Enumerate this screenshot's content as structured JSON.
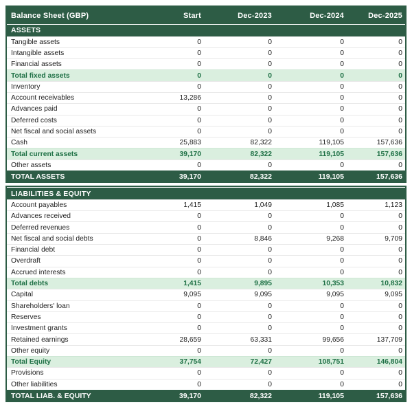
{
  "sheet": {
    "title": "Balance Sheet (GBP)",
    "columns": [
      "Start",
      "Dec-2023",
      "Dec-2024",
      "Dec-2025"
    ],
    "colors": {
      "header_green": "#2d5c45",
      "subtotal_bg": "#daefdf",
      "subtotal_text": "#1e7045"
    },
    "sections": [
      {
        "name": "ASSETS",
        "rows": [
          {
            "label": "Tangible assets",
            "type": "normal",
            "values": [
              "0",
              "0",
              "0",
              "0"
            ]
          },
          {
            "label": "Intangible assets",
            "type": "normal",
            "values": [
              "0",
              "0",
              "0",
              "0"
            ]
          },
          {
            "label": "Financial assets",
            "type": "normal",
            "values": [
              "0",
              "0",
              "0",
              "0"
            ]
          },
          {
            "label": "Total fixed assets",
            "type": "subtotal",
            "values": [
              "0",
              "0",
              "0",
              "0"
            ]
          },
          {
            "label": "Inventory",
            "type": "normal",
            "values": [
              "0",
              "0",
              "0",
              "0"
            ]
          },
          {
            "label": "Account receivables",
            "type": "normal",
            "values": [
              "13,286",
              "0",
              "0",
              "0"
            ]
          },
          {
            "label": "Advances paid",
            "type": "normal",
            "values": [
              "0",
              "0",
              "0",
              "0"
            ]
          },
          {
            "label": "Deferred costs",
            "type": "normal",
            "values": [
              "0",
              "0",
              "0",
              "0"
            ]
          },
          {
            "label": "Net fiscal and social assets",
            "type": "normal",
            "values": [
              "0",
              "0",
              "0",
              "0"
            ]
          },
          {
            "label": "Cash",
            "type": "normal",
            "values": [
              "25,883",
              "82,322",
              "119,105",
              "157,636"
            ]
          },
          {
            "label": "Total current assets",
            "type": "subtotal",
            "values": [
              "39,170",
              "82,322",
              "119,105",
              "157,636"
            ]
          },
          {
            "label": "Other assets",
            "type": "normal",
            "values": [
              "0",
              "0",
              "0",
              "0"
            ]
          },
          {
            "label": "TOTAL ASSETS",
            "type": "grand",
            "values": [
              "39,170",
              "82,322",
              "119,105",
              "157,636"
            ]
          }
        ]
      },
      {
        "name": "LIABILITIES & EQUITY",
        "rows": [
          {
            "label": "Account payables",
            "type": "normal",
            "values": [
              "1,415",
              "1,049",
              "1,085",
              "1,123"
            ]
          },
          {
            "label": "Advances received",
            "type": "normal",
            "values": [
              "0",
              "0",
              "0",
              "0"
            ]
          },
          {
            "label": "Deferred revenues",
            "type": "normal",
            "values": [
              "0",
              "0",
              "0",
              "0"
            ]
          },
          {
            "label": "Net fiscal and social debts",
            "type": "normal",
            "values": [
              "0",
              "8,846",
              "9,268",
              "9,709"
            ]
          },
          {
            "label": "Financial debt",
            "type": "normal",
            "values": [
              "0",
              "0",
              "0",
              "0"
            ]
          },
          {
            "label": "Overdraft",
            "type": "normal",
            "values": [
              "0",
              "0",
              "0",
              "0"
            ]
          },
          {
            "label": "Accrued interests",
            "type": "normal",
            "values": [
              "0",
              "0",
              "0",
              "0"
            ]
          },
          {
            "label": "Total debts",
            "type": "subtotal",
            "values": [
              "1,415",
              "9,895",
              "10,353",
              "10,832"
            ]
          },
          {
            "label": "Capital",
            "type": "normal",
            "values": [
              "9,095",
              "9,095",
              "9,095",
              "9,095"
            ]
          },
          {
            "label": "Shareholders' loan",
            "type": "normal",
            "values": [
              "0",
              "0",
              "0",
              "0"
            ]
          },
          {
            "label": "Reserves",
            "type": "normal",
            "values": [
              "0",
              "0",
              "0",
              "0"
            ]
          },
          {
            "label": "Investment grants",
            "type": "normal",
            "values": [
              "0",
              "0",
              "0",
              "0"
            ]
          },
          {
            "label": "Retained earnings",
            "type": "normal",
            "values": [
              "28,659",
              "63,331",
              "99,656",
              "137,709"
            ]
          },
          {
            "label": "Other equity",
            "type": "normal",
            "values": [
              "0",
              "0",
              "0",
              "0"
            ]
          },
          {
            "label": "Total Equity",
            "type": "subtotal",
            "values": [
              "37,754",
              "72,427",
              "108,751",
              "146,804"
            ]
          },
          {
            "label": "Provisions",
            "type": "normal",
            "values": [
              "0",
              "0",
              "0",
              "0"
            ]
          },
          {
            "label": "Other liabilities",
            "type": "normal",
            "values": [
              "0",
              "0",
              "0",
              "0"
            ]
          },
          {
            "label": "TOTAL LIAB. & EQUITY",
            "type": "grand",
            "values": [
              "39,170",
              "82,322",
              "119,105",
              "157,636"
            ]
          }
        ]
      }
    ]
  }
}
